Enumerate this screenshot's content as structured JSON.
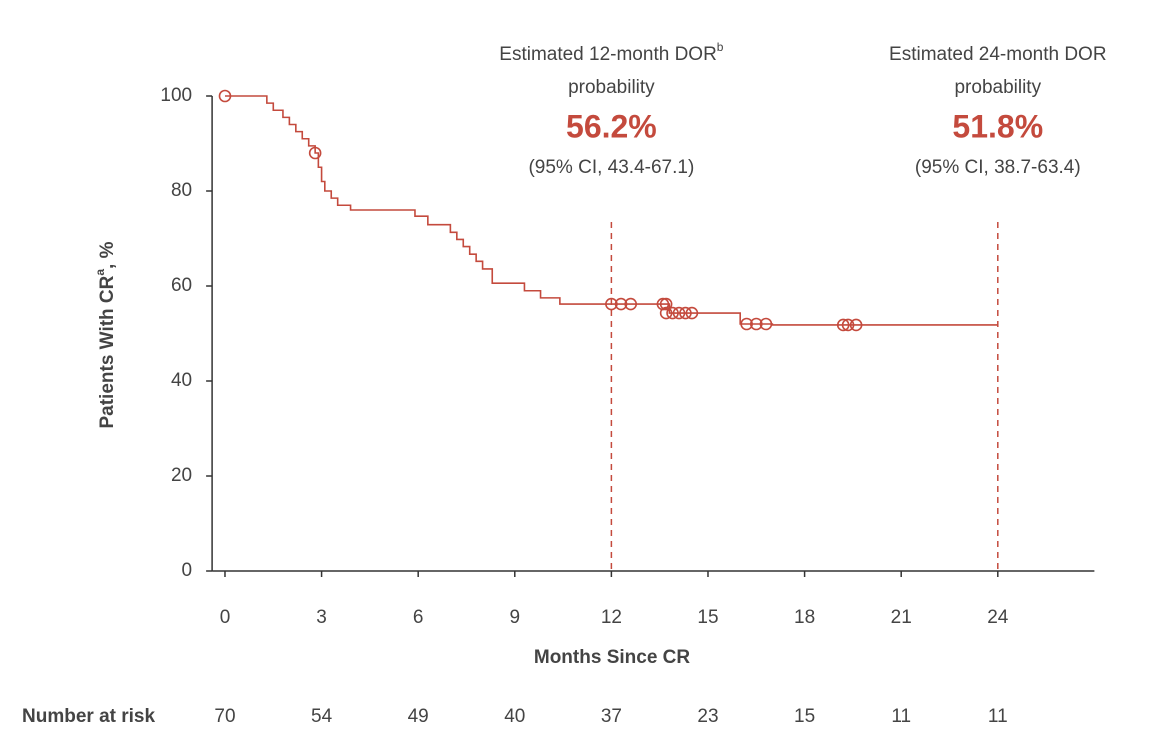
{
  "chart_data": {
    "type": "km",
    "ylabel": "Patients With CR",
    "ylabel_sup": "a",
    "ylabel_suffix": ", %",
    "xlabel": "Months Since CR",
    "xlim": [
      -0.4,
      27
    ],
    "ylim": [
      0,
      100
    ],
    "xticks": [
      0,
      3,
      6,
      9,
      12,
      15,
      18,
      21,
      24
    ],
    "yticks": [
      0,
      20,
      40,
      60,
      80,
      100
    ],
    "color": "#c44a3d",
    "series": [
      {
        "x": [
          0,
          1.3,
          1.5,
          1.8,
          2.0,
          2.2,
          2.4,
          2.6,
          2.8,
          2.9,
          3.0,
          3.1,
          3.3,
          3.5,
          3.9,
          5.9,
          6.3,
          7.0,
          7.2,
          7.4,
          7.6,
          7.8,
          8.0,
          8.3,
          9.3,
          9.8,
          10.4,
          13.8,
          16.0,
          17.0,
          24
        ],
        "y": [
          100,
          98.5,
          97,
          95.5,
          94,
          92.5,
          91,
          89.5,
          88,
          85,
          82,
          80,
          78.5,
          77,
          76,
          74.7,
          72.9,
          71.3,
          69.8,
          68.3,
          66.7,
          65.2,
          63.6,
          60.6,
          59,
          57.5,
          56.2,
          54.3,
          52,
          51.8,
          51.8
        ]
      }
    ],
    "censored": {
      "x": [
        0,
        2.8,
        12,
        12.3,
        12.6,
        13.6,
        13.7,
        13.7,
        13.9,
        14.1,
        14.3,
        14.5,
        16.2,
        16.5,
        16.8,
        19.2,
        19.35,
        19.6
      ],
      "y": [
        100,
        88,
        56.2,
        56.2,
        56.2,
        56.2,
        56.2,
        54.3,
        54.3,
        54.3,
        54.3,
        54.3,
        52,
        52,
        52,
        51.8,
        51.8,
        51.8
      ]
    },
    "reference_lines": [
      12,
      24
    ],
    "annotations": [
      {
        "title": "Estimated 12-month DOR",
        "sup": "b",
        "subtitle": "probability",
        "value": "56.2%",
        "ci": "(95% CI, 43.4-67.1)"
      },
      {
        "title": "Estimated 24-month DOR",
        "subtitle": "probability",
        "value": "51.8%",
        "ci": "(95% CI, 38.7-63.4)"
      }
    ],
    "risk_table": {
      "label": "Number at risk",
      "values": [
        70,
        54,
        49,
        40,
        37,
        23,
        15,
        11,
        11
      ]
    }
  }
}
